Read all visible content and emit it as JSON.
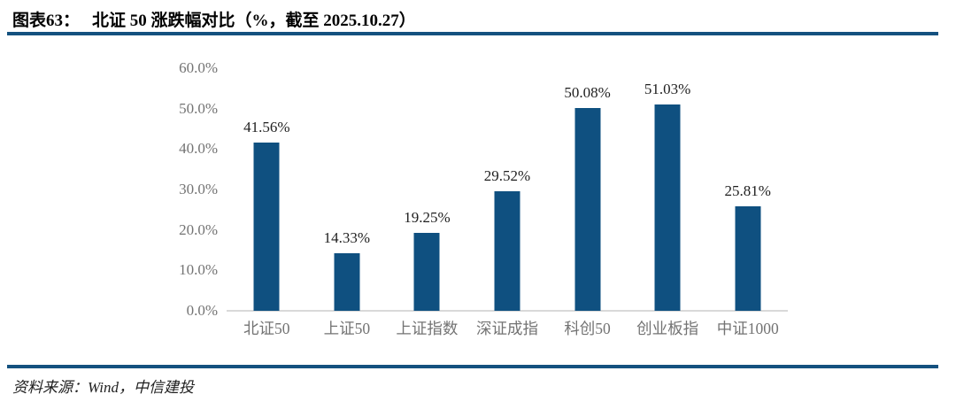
{
  "header": {
    "figure_label": "图表63：",
    "figure_title": "北证 50 涨跌幅对比（%，截至 2025.10.27）"
  },
  "footer": {
    "source": "资料来源：Wind，中信建投"
  },
  "colors": {
    "bar": "#0F5080",
    "rule": "#14517F",
    "axis_text": "#737373",
    "value_text": "#1F1F1F",
    "baseline": "#D9D9D9"
  },
  "chart_data": {
    "type": "bar",
    "title": "北证 50 涨跌幅对比（%，截至 2025.10.27）",
    "categories": [
      "北证50",
      "上证50",
      "上证指数",
      "深证成指",
      "科创50",
      "创业板指",
      "中证1000"
    ],
    "values": [
      41.56,
      14.33,
      19.25,
      29.52,
      50.08,
      51.03,
      25.81
    ],
    "value_labels": [
      "41.56%",
      "14.33%",
      "19.25%",
      "29.52%",
      "50.08%",
      "51.03%",
      "25.81%"
    ],
    "xlabel": "",
    "ylabel": "",
    "ylim": [
      0,
      60
    ],
    "ytick_step": 10,
    "ytick_labels": [
      "0.0%",
      "10.0%",
      "20.0%",
      "30.0%",
      "40.0%",
      "50.0%",
      "60.0%"
    ],
    "grid": false,
    "legend": false,
    "bar_color": "#0F5080"
  }
}
